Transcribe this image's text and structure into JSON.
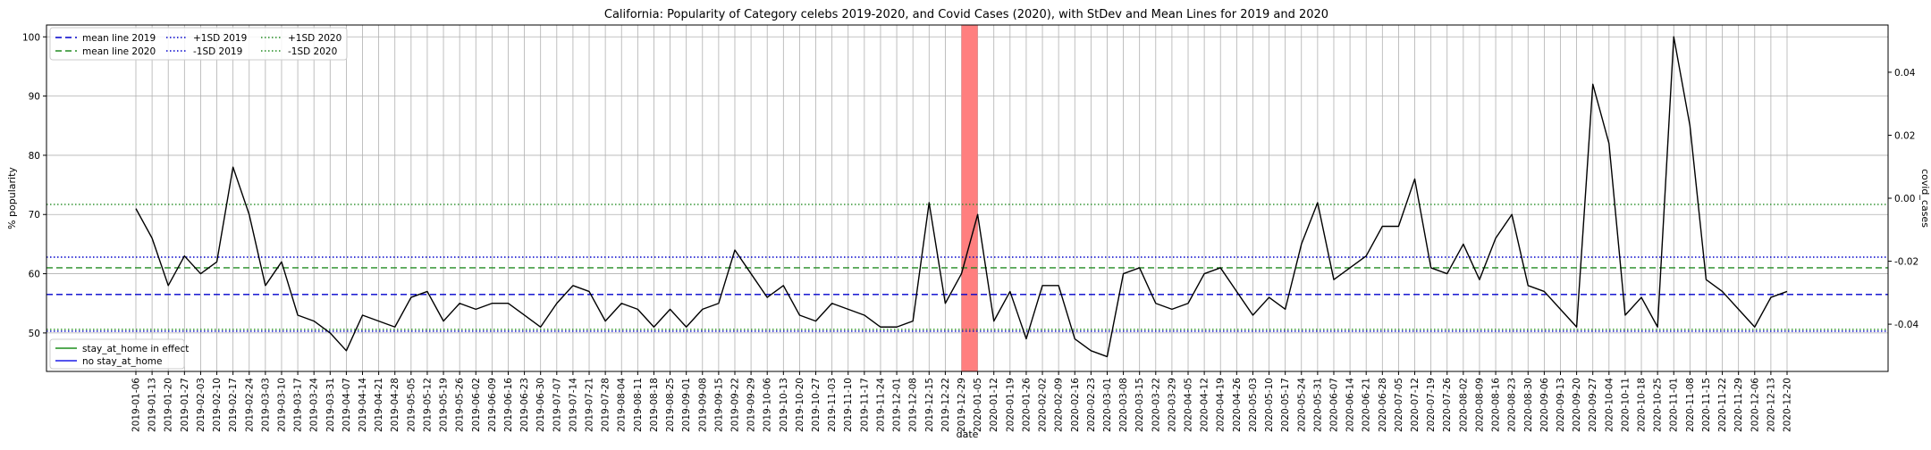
{
  "chart_data": {
    "type": "line",
    "title": "California: Popularity of Category celebs 2019-2020, and Covid Cases (2020), with StDev and Mean Lines for 2019 and 2020",
    "xlabel": "date",
    "ylabel": "% popularity",
    "ylabel_right": "covid_cases",
    "ylim": [
      43.5,
      102
    ],
    "ylim_right": [
      -0.055,
      0.055
    ],
    "yticks": [
      50,
      60,
      70,
      80,
      90,
      100
    ],
    "yticks_right": [
      "-0.04",
      "-0.02",
      "0.00",
      "0.02",
      "0.04"
    ],
    "yticks_right_values": [
      -0.04,
      -0.02,
      0.0,
      0.02,
      0.04
    ],
    "grid": true,
    "x": [
      "2019-01-06",
      "2019-01-13",
      "2019-01-20",
      "2019-01-27",
      "2019-02-03",
      "2019-02-10",
      "2019-02-17",
      "2019-02-24",
      "2019-03-03",
      "2019-03-10",
      "2019-03-17",
      "2019-03-24",
      "2019-03-31",
      "2019-04-07",
      "2019-04-14",
      "2019-04-21",
      "2019-04-28",
      "2019-05-05",
      "2019-05-12",
      "2019-05-19",
      "2019-05-26",
      "2019-06-02",
      "2019-06-09",
      "2019-06-16",
      "2019-06-23",
      "2019-06-30",
      "2019-07-07",
      "2019-07-14",
      "2019-07-21",
      "2019-07-28",
      "2019-08-04",
      "2019-08-11",
      "2019-08-18",
      "2019-08-25",
      "2019-09-01",
      "2019-09-08",
      "2019-09-15",
      "2019-09-22",
      "2019-09-29",
      "2019-10-06",
      "2019-10-13",
      "2019-10-20",
      "2019-10-27",
      "2019-11-03",
      "2019-11-10",
      "2019-11-17",
      "2019-11-24",
      "2019-12-01",
      "2019-12-08",
      "2019-12-15",
      "2019-12-22",
      "2019-12-29",
      "2020-01-05",
      "2020-01-12",
      "2020-01-19",
      "2020-01-26",
      "2020-02-02",
      "2020-02-09",
      "2020-02-16",
      "2020-02-23",
      "2020-03-01",
      "2020-03-08",
      "2020-03-15",
      "2020-03-22",
      "2020-03-29",
      "2020-04-05",
      "2020-04-12",
      "2020-04-19",
      "2020-04-26",
      "2020-05-03",
      "2020-05-10",
      "2020-05-17",
      "2020-05-24",
      "2020-05-31",
      "2020-06-07",
      "2020-06-14",
      "2020-06-21",
      "2020-06-28",
      "2020-07-05",
      "2020-07-12",
      "2020-07-19",
      "2020-07-26",
      "2020-08-02",
      "2020-08-09",
      "2020-08-16",
      "2020-08-23",
      "2020-08-30",
      "2020-09-06",
      "2020-09-13",
      "2020-09-20",
      "2020-09-27",
      "2020-10-04",
      "2020-10-11",
      "2020-10-18",
      "2020-10-25",
      "2020-11-01",
      "2020-11-08",
      "2020-11-15",
      "2020-11-22",
      "2020-11-29",
      "2020-12-06",
      "2020-12-13",
      "2020-12-20"
    ],
    "series": [
      {
        "values": [
          71,
          66,
          58,
          63,
          60,
          62,
          78,
          70,
          58,
          62,
          53,
          52,
          50,
          47,
          53,
          52,
          51,
          56,
          57,
          52,
          55,
          54,
          55,
          55,
          53,
          51,
          55,
          58,
          57,
          52,
          55,
          54,
          51,
          54,
          51,
          54,
          55,
          64,
          60,
          56,
          58,
          53,
          52,
          55,
          54,
          53,
          51,
          51,
          52,
          72,
          55,
          60,
          70,
          52,
          57,
          49,
          58,
          58,
          49,
          47,
          46,
          60,
          61,
          55,
          54,
          55,
          60,
          61,
          57,
          53,
          56,
          54,
          65,
          72,
          59,
          61,
          63,
          68,
          68,
          76,
          61,
          60,
          65,
          59,
          66,
          70,
          58,
          57,
          54,
          51,
          92,
          82,
          53,
          56,
          51,
          100,
          85,
          59,
          57,
          54,
          51,
          56,
          57
        ],
        "color": "#000000"
      }
    ],
    "reference_lines": [
      {
        "label": "mean line 2019",
        "value": 56.5,
        "color": "#0000cc",
        "style": "dashed"
      },
      {
        "label": "mean line 2020",
        "value": 61.0,
        "color": "#228b22",
        "style": "dashed"
      },
      {
        "label": "+1SD 2019",
        "value": 62.8,
        "color": "#0000cc",
        "style": "dotted"
      },
      {
        "label": "-1SD 2019",
        "value": 50.3,
        "color": "#0000cc",
        "style": "dotted"
      },
      {
        "label": "+1SD 2020",
        "value": 71.7,
        "color": "#228b22",
        "style": "dotted"
      },
      {
        "label": "-1SD 2020",
        "value": 50.6,
        "color": "#228b22",
        "style": "dotted"
      }
    ],
    "highlight_span": {
      "from": "2019-12-29",
      "to": "2020-01-05",
      "color": "#ff7f7f"
    },
    "legend_top": {
      "placement": "top-left",
      "items": [
        "mean line 2019",
        "mean line 2020",
        "+1SD 2019",
        "-1SD 2019",
        "+1SD 2020",
        "-1SD 2020"
      ]
    },
    "legend_bottom": {
      "placement": "bottom-left",
      "items": [
        {
          "label": "stay_at_home in effect",
          "color": "#55aa55"
        },
        {
          "label": "no stay_at_home",
          "color": "#5555ee"
        }
      ]
    }
  }
}
